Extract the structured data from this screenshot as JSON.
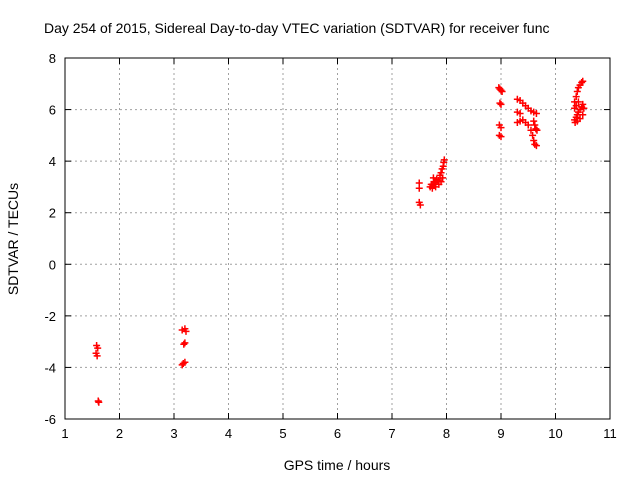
{
  "chart_data": {
    "type": "scatter",
    "title": "Day 254 of 2015, Sidereal Day-to-day VTEC variation (SDTVAR) for receiver func",
    "xlabel": "GPS time / hours",
    "ylabel": "SDTVAR / TECUs",
    "xlim": [
      1,
      11
    ],
    "ylim": [
      -6,
      8
    ],
    "xticks": [
      1,
      2,
      3,
      4,
      5,
      6,
      7,
      8,
      9,
      10,
      11
    ],
    "yticks": [
      -6,
      -4,
      -2,
      0,
      2,
      4,
      6,
      8
    ],
    "xtick_labels": [
      "1",
      "2",
      "3",
      "4",
      "5",
      "6",
      "7",
      "8",
      "9",
      "10",
      "11"
    ],
    "ytick_labels": [
      "-6",
      "-4",
      "-2",
      "0",
      "2",
      "4",
      "6",
      "8"
    ],
    "grid": true,
    "marker": "plus",
    "color": "#ff0000",
    "series": [
      {
        "name": "SDTVAR",
        "points": [
          [
            1.58,
            -3.15
          ],
          [
            1.6,
            -3.25
          ],
          [
            1.57,
            -3.45
          ],
          [
            1.59,
            -3.55
          ],
          [
            1.61,
            -5.3
          ],
          [
            1.62,
            -5.35
          ],
          [
            3.15,
            -2.55
          ],
          [
            3.2,
            -2.5
          ],
          [
            3.22,
            -2.6
          ],
          [
            3.18,
            -3.1
          ],
          [
            3.2,
            -3.05
          ],
          [
            3.15,
            -3.9
          ],
          [
            3.2,
            -3.8
          ],
          [
            3.17,
            -3.85
          ],
          [
            7.5,
            3.15
          ],
          [
            7.5,
            2.95
          ],
          [
            7.5,
            2.4
          ],
          [
            7.52,
            2.3
          ],
          [
            7.7,
            3.0
          ],
          [
            7.72,
            3.1
          ],
          [
            7.75,
            3.05
          ],
          [
            7.78,
            3.2
          ],
          [
            7.8,
            3.15
          ],
          [
            7.82,
            3.3
          ],
          [
            7.85,
            3.25
          ],
          [
            7.88,
            3.45
          ],
          [
            7.9,
            3.55
          ],
          [
            7.92,
            3.7
          ],
          [
            7.94,
            3.8
          ],
          [
            7.95,
            3.95
          ],
          [
            7.96,
            4.05
          ],
          [
            7.74,
            2.95
          ],
          [
            7.8,
            3.0
          ],
          [
            7.86,
            3.1
          ],
          [
            7.9,
            3.2
          ],
          [
            7.93,
            3.35
          ],
          [
            7.76,
            3.35
          ],
          [
            8.96,
            6.85
          ],
          [
            8.98,
            6.8
          ],
          [
            9.0,
            6.75
          ],
          [
            9.02,
            6.7
          ],
          [
            8.98,
            6.25
          ],
          [
            9.0,
            6.2
          ],
          [
            8.97,
            5.4
          ],
          [
            9.0,
            5.3
          ],
          [
            8.97,
            5.0
          ],
          [
            9.0,
            4.95
          ],
          [
            9.3,
            6.4
          ],
          [
            9.35,
            6.35
          ],
          [
            9.4,
            6.25
          ],
          [
            9.45,
            6.15
          ],
          [
            9.5,
            6.05
          ],
          [
            9.55,
            5.95
          ],
          [
            9.6,
            5.9
          ],
          [
            9.65,
            5.85
          ],
          [
            9.3,
            5.9
          ],
          [
            9.35,
            5.85
          ],
          [
            9.3,
            5.5
          ],
          [
            9.35,
            5.55
          ],
          [
            9.4,
            5.6
          ],
          [
            9.45,
            5.5
          ],
          [
            9.5,
            5.4
          ],
          [
            9.55,
            5.2
          ],
          [
            9.58,
            5.0
          ],
          [
            9.6,
            4.8
          ],
          [
            9.62,
            4.65
          ],
          [
            9.65,
            4.6
          ],
          [
            9.6,
            5.55
          ],
          [
            9.62,
            5.4
          ],
          [
            9.64,
            5.25
          ],
          [
            9.66,
            5.2
          ],
          [
            10.35,
            6.3
          ],
          [
            10.38,
            6.5
          ],
          [
            10.4,
            6.7
          ],
          [
            10.42,
            6.85
          ],
          [
            10.45,
            6.95
          ],
          [
            10.48,
            7.05
          ],
          [
            10.5,
            7.1
          ],
          [
            10.35,
            5.6
          ],
          [
            10.38,
            5.7
          ],
          [
            10.4,
            5.8
          ],
          [
            10.42,
            5.9
          ],
          [
            10.45,
            6.0
          ],
          [
            10.48,
            6.1
          ],
          [
            10.5,
            6.2
          ],
          [
            10.52,
            6.05
          ],
          [
            10.36,
            5.5
          ],
          [
            10.4,
            5.55
          ],
          [
            10.45,
            5.65
          ],
          [
            10.5,
            5.8
          ],
          [
            10.35,
            6.05
          ],
          [
            10.38,
            6.15
          ],
          [
            10.42,
            6.3
          ]
        ]
      }
    ]
  }
}
